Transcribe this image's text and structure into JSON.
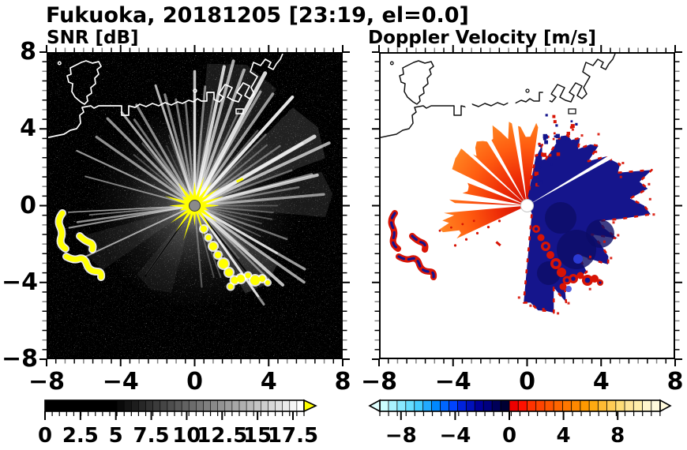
{
  "header": {
    "title": "Fukuoka, 20181205 [23:19, el=0.0]",
    "station": "Fukuoka",
    "date": "20181205",
    "time": "23:19",
    "elevation": "0.0"
  },
  "panels": {
    "snr": {
      "title": "SNR [dB]",
      "y_tick_labels": [
        "8",
        "4",
        "0",
        "−4",
        "−8"
      ],
      "x_tick_labels": [
        "−8",
        "−4",
        "0",
        "4",
        "8"
      ],
      "colorbar": {
        "tick_labels": [
          "0",
          "2.5",
          "5",
          "7.5",
          "10",
          "12.5",
          "15",
          "17.5"
        ],
        "overflow_arrow": "#ffff00",
        "segments": [
          "#000000",
          "#000000",
          "#000000",
          "#000000",
          "#000000",
          "#000000",
          "#000000",
          "#000000",
          "#000000",
          "#000000",
          "#0a0a0a",
          "#141414",
          "#1d1d1d",
          "#272727",
          "#313131",
          "#3b3b3b",
          "#454545",
          "#4e4e4e",
          "#585858",
          "#626262",
          "#6c6c6c",
          "#767676",
          "#7f7f7f",
          "#898989",
          "#939393",
          "#9d9d9d",
          "#a7a7a7",
          "#b0b0b0",
          "#bababa",
          "#c4c4c4",
          "#cecece",
          "#d8d8d8",
          "#e1e1e1",
          "#ebebeb",
          "#f5f5f5",
          "#ffffff"
        ]
      }
    },
    "doppler": {
      "title": "Doppler Velocity [m/s]",
      "x_tick_labels": [
        "−8",
        "−4",
        "0",
        "4",
        "8"
      ],
      "colorbar": {
        "tick_labels": [
          "−8",
          "−4",
          "0",
          "4",
          "8"
        ],
        "underflow_arrow": "#e0ffff",
        "overflow_arrow": "#fffadd",
        "segments_negative": [
          "#ccffff",
          "#aaf2ff",
          "#88e8ff",
          "#66ddff",
          "#44ccff",
          "#22aaff",
          "#0088ff",
          "#0066ff",
          "#0044ff",
          "#0022dd",
          "#0011bb",
          "#000099",
          "#000080",
          "#000059",
          "#000033"
        ],
        "segments_positive": [
          "#ee0000",
          "#ff1100",
          "#ff3300",
          "#ff4400",
          "#ff5500",
          "#ff6600",
          "#ff7700",
          "#ff8800",
          "#ff9900",
          "#ffaa11",
          "#ffbb33",
          "#ffcc55",
          "#ffdd77",
          "#ffe699",
          "#ffeeaa",
          "#fff5cc",
          "#fffadd"
        ]
      }
    }
  },
  "colors": {
    "frame": "#000000",
    "sea_snr": "#000000",
    "sea_doppler": "#ffffff",
    "coast_snr": "#ffffff",
    "coast_doppler": "#111111",
    "ray": "#ffffff",
    "saturated_yellow": "#ffff00",
    "center_dot_snr": "#8a8a8a",
    "center_dot_doppler": "#ffffff",
    "navy": "#15158c",
    "navy_dark": "#0d0d66",
    "navy_light": "#2a3ad4",
    "red": "#d81405",
    "orange": "#ff8c28",
    "minor_tick_gray": "#808080"
  },
  "chart_data": [
    {
      "type": "heatmap",
      "title": "SNR [dB]",
      "suptitle": "Fukuoka, 20181205 [23:19, el=0.0]",
      "x_range": [
        -8,
        8
      ],
      "y_range": [
        -8,
        8
      ],
      "x_ticks": [
        -8,
        -4,
        0,
        4,
        8
      ],
      "y_ticks": [
        8,
        4,
        0,
        -4,
        -8
      ],
      "minor_tick_step": 0.5,
      "grid": false,
      "colorbar": {
        "range": [
          0,
          17.5
        ],
        "ticks": [
          0,
          2.5,
          5,
          7.5,
          10,
          12.5,
          15,
          17.5
        ],
        "colormap": "black to white grayscale, yellow overflow arrow at high end",
        "orientation": "horizontal below panel"
      },
      "features": [
        "radar located at origin (0,0), marked by small gray dot",
        "bright white radial beams emanating from origin, strongest toward N, NE, E and SE",
        "saturated yellow (very high SNR) starburst around origin",
        "chain of yellow clutter echoes from origin toward about (4,-3.5)",
        "isolated yellow echoes near (-6.5,-1.5), (-6,-3) and (-5.5,-3.5)",
        "white coastline of Hakata Bay across upper half of panel",
        "island outline near (-5.5, 6.5)",
        "rectangular port piers zigzagging from about (1.5,5) to (4,7.7)",
        "faint speckle noise over black sea background"
      ]
    },
    {
      "type": "heatmap",
      "title": "Doppler Velocity [m/s]",
      "suptitle": "Fukuoka, 20181205 [23:19, el=0.0]",
      "x_range": [
        -8,
        8
      ],
      "y_range": [
        -8,
        8
      ],
      "x_ticks": [
        -8,
        -4,
        0,
        4,
        8
      ],
      "y_ticks": [
        8,
        4,
        0,
        -4,
        -8
      ],
      "minor_tick_step": 0.5,
      "grid": false,
      "colorbar": {
        "range": [
          -10,
          11
        ],
        "ticks": [
          -8,
          -4,
          0,
          4,
          8
        ],
        "colormap": "pale cyan to dark navy for negative values; red to pale yellow for positive values; arrows at both ends",
        "orientation": "horizontal below panel"
      },
      "features": [
        "white dot at radar origin (0,0)",
        "orange/red fan (about +2 to +6 m/s) northwest and north of radar",
        "narrow red-orange wedges pointing west and southwest of radar",
        "large dark navy region (about -6 to -9 m/s) north-east to south-east of radar with red speckled fringe",
        "mixed red/navy speckles just north-northeast of radar",
        "paired red/navy echoes near (-6.5,-1.5), (-6,-3) and along clutter chain toward (4,-3.5)",
        "black coastline identical to SNR panel",
        "white background where no echo"
      ]
    }
  ]
}
